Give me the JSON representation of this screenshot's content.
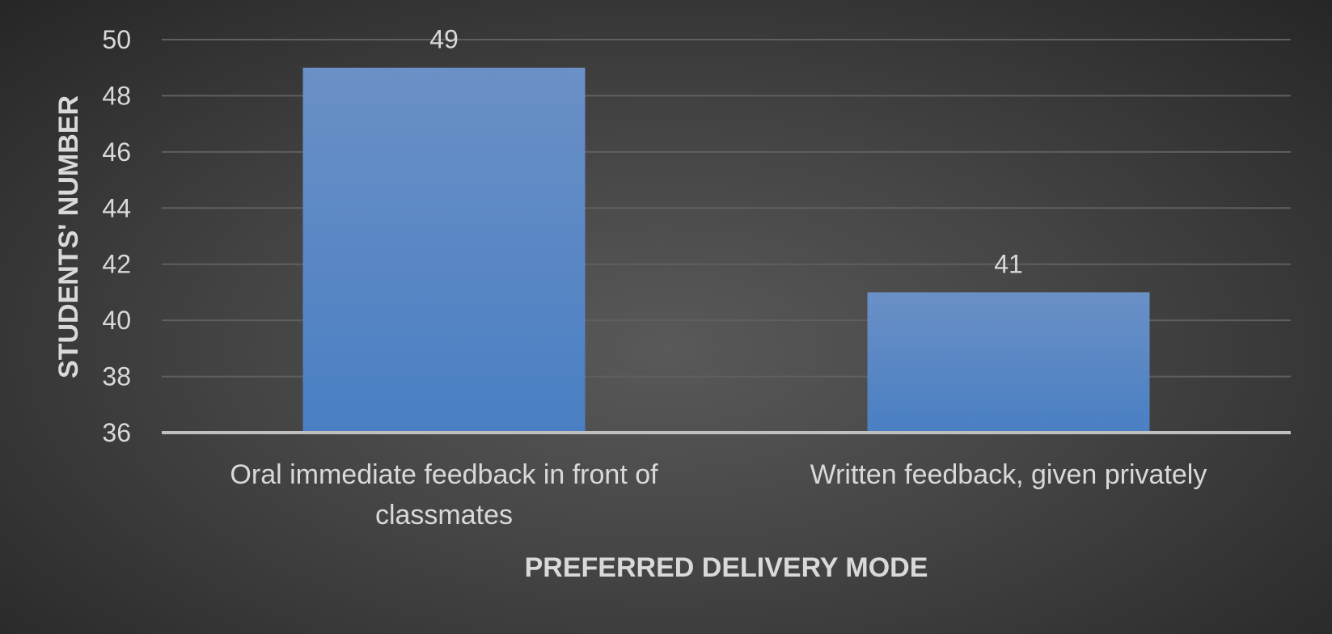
{
  "chart_data": {
    "type": "bar",
    "title": "",
    "xlabel": "PREFERRED DELIVERY MODE",
    "ylabel": "STUDENTS' NUMBER",
    "categories": [
      [
        "Oral immediate feedback in front of",
        "classmates"
      ],
      [
        "Written feedback, given privately"
      ]
    ],
    "values": [
      49,
      41
    ],
    "ylim": [
      36,
      50
    ],
    "yticks": [
      36,
      38,
      40,
      42,
      44,
      46,
      48,
      50
    ],
    "grid": true,
    "legend": "none",
    "bar_color": "#5b87c7",
    "bar_color_top": "#6a90c6",
    "bar_color_bottom": "#4a7fc3",
    "grid_color": "#5f5f5f",
    "axis_color": "#bfbfbf",
    "text_color": "#d9d9d9"
  }
}
